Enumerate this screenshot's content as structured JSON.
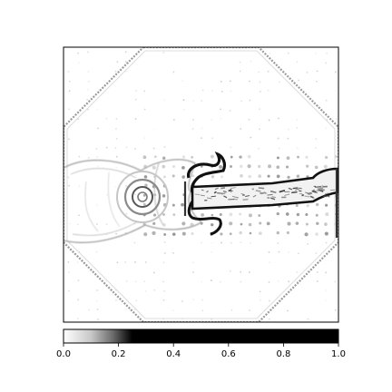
{
  "chart_data": [
    {
      "type": "heatmap",
      "title": "",
      "xlabel": "",
      "ylabel": "",
      "axes_ticks_visible": false,
      "colormap": "gray_r",
      "content": "saliency / edge-magnitude map of an electric guitar lying horizontally, framed by a faint octagonal border",
      "grid": false
    },
    {
      "type": "colorbar",
      "orientation": "horizontal",
      "placement": "bottom",
      "range": [
        0.0,
        1.0
      ],
      "ticks": [
        0.0,
        0.2,
        0.4,
        0.6,
        0.8,
        1.0
      ],
      "tick_labels": [
        "0.0",
        "0.2",
        "0.4",
        "0.6",
        "0.8",
        "1.0"
      ],
      "gradient_stops": [
        {
          "value": 0.0,
          "color": "#ffffff"
        },
        {
          "value": 0.1,
          "color": "#c8c8c8"
        },
        {
          "value": 0.18,
          "color": "#6a6a6a"
        },
        {
          "value": 0.25,
          "color": "#000000"
        },
        {
          "value": 1.0,
          "color": "#000000"
        }
      ]
    }
  ]
}
